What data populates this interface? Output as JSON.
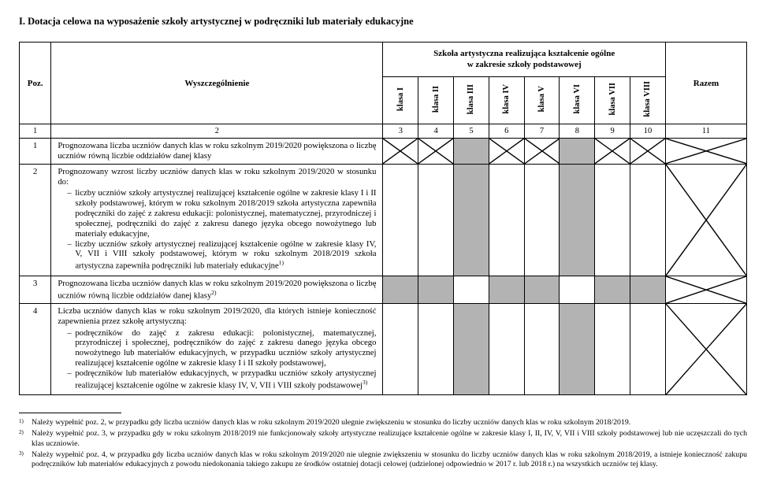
{
  "title": "I.   Dotacja celowa na wyposażenie szkoły artystycznej w podręczniki lub materiały edukacyjne",
  "headers": {
    "poz": "Poz.",
    "spec": "Wyszczególnienie",
    "group": "Szkoła artystyczna realizująca kształcenie ogólne\nw zakresie szkoły podstawowej",
    "razem": "Razem",
    "klasy": [
      "klasa I",
      "klasa II",
      "klasa III",
      "klasa IV",
      "klasa V",
      "klasa VI",
      "klasa VII",
      "klasa VIII"
    ]
  },
  "numRow": {
    "poz": "1",
    "spec": "2",
    "klasy": [
      "3",
      "4",
      "5",
      "6",
      "7",
      "8",
      "9",
      "10"
    ],
    "razem": "11"
  },
  "rows": [
    {
      "poz": "1",
      "desc": "Prognozowana liczba uczniów danych klas w roku szkolnym 2019/2020 powiększona o liczbę uczniów równą liczbie oddziałów danej klasy",
      "cells": [
        "X",
        "X",
        "gray",
        "X",
        "X",
        "gray",
        "X",
        "X"
      ],
      "razem": "X"
    },
    {
      "poz": "2",
      "desc_html": "Prognozowany wzrost liczby uczniów danych klas w roku szkolnym 2019/2020 w stosunku do:|LIST|liczby uczniów szkoły artystycznej realizującej kształcenie ogólne w zakresie klasy I i II szkoły podstawowej, którym w roku szkolnym 2018/2019 szkoła artystyczna zapewniła podręczniki do zajęć z zakresu edukacji: polonistycznej, matematycznej, przyrodniczej i społecznej, podręczniki do zajęć z zakresu danego języka obcego nowożytnego lub materiały edukacyjne,|liczby uczniów szkoły artystycznej realizującej kształcenie ogólne w zakresie klasy IV, V, VII i VIII szkoły podstawowej, którym w roku szkolnym 2018/2019 szkoła artystyczna zapewniła podręczniki lub materiały edukacyjne<sup>1)</sup>",
      "cells": [
        "",
        "",
        "gray",
        "",
        "",
        "gray",
        "",
        ""
      ],
      "razem": "X"
    },
    {
      "poz": "3",
      "desc": "Prognozowana liczba uczniów danych klas w roku szkolnym 2019/2020 powiększona o liczbę uczniów równą liczbie oddziałów danej klasy<sup>2)</sup>",
      "cells": [
        "gray",
        "gray",
        "",
        "gray",
        "gray",
        "",
        "gray",
        "gray"
      ],
      "razem": "X"
    },
    {
      "poz": "4",
      "desc_html": "Liczba uczniów danych klas w roku szkolnym 2019/2020, dla których istnieje konieczność zapewnienia przez szkołę artystyczną:|LIST|podręczników do zajęć z zakresu edukacji: polonistycznej, matematycznej, przyrodniczej i społecznej, podręczników do zajęć z zakresu danego języka obcego nowożytnego lub materiałów edukacyjnych, w przypadku uczniów szkoły artystycznej realizującej kształcenie ogólne w zakresie klasy I i II szkoły podstawowej,|podręczników lub materiałów edukacyjnych, w przypadku uczniów szkoły artystycznej realizującej kształcenie ogólne w zakresie klasy IV, V, VII i VIII szkoły podstawowej<sup>3)</sup>",
      "cells": [
        "",
        "",
        "gray",
        "",
        "",
        "gray",
        "",
        ""
      ],
      "razem": "X"
    }
  ],
  "footnotes": [
    {
      "mark": "1)",
      "text": "Należy wypełnić poz. 2, w przypadku gdy liczba uczniów danych klas w roku szkolnym 2019/2020 ulegnie zwiększeniu w stosunku do liczby uczniów danych klas w roku szkolnym 2018/2019."
    },
    {
      "mark": "2)",
      "text": "Należy wypełnić poz. 3, w przypadku gdy w roku szkolnym 2018/2019 nie funkcjonowały szkoły artystyczne realizujące kształcenie ogólne w zakresie klasy I, II, IV, V, VII i VIII szkoły podstawowej lub nie uczęszczali do tych klas uczniowie."
    },
    {
      "mark": "3)",
      "text": "Należy wypełnić poz. 4, w przypadku gdy liczba uczniów danych klas w roku szkolnym 2019/2020 nie ulegnie zwiększeniu w stosunku do liczby uczniów danych klas w roku szkolnym 2018/2019, a istnieje konieczność zakupu podręczników lub materiałów edukacyjnych z powodu niedokonania takiego zakupu ze środków ostatniej dotacji celowej (udzielonej odpowiednio w 2017 r. lub 2018 r.) na wszystkich uczniów tej klasy."
    }
  ],
  "colors": {
    "gray": "#b3b3b3"
  }
}
